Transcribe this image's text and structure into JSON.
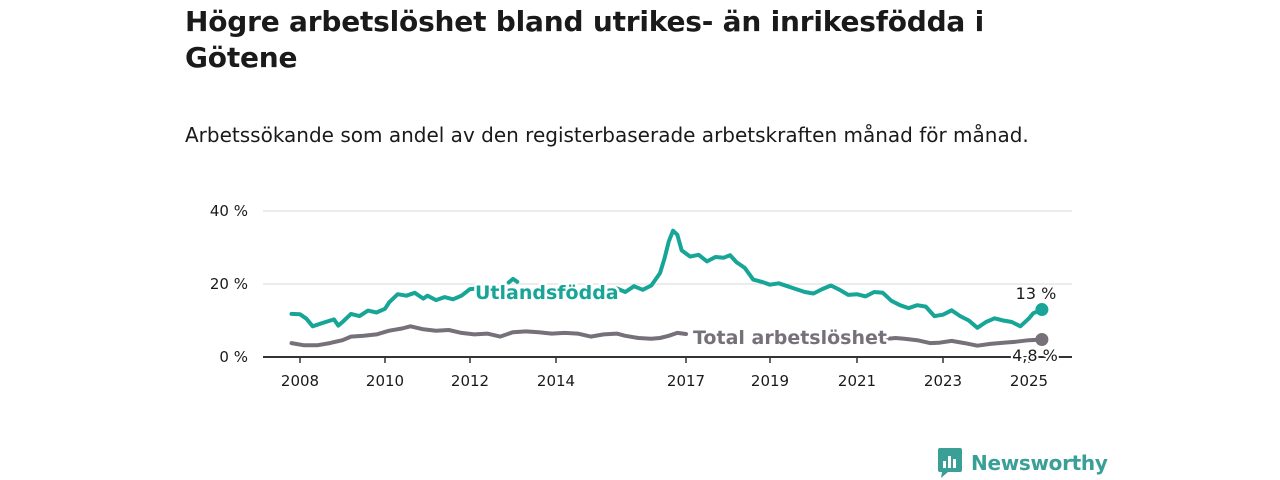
{
  "header": {
    "title": "Högre arbetslöshet bland utrikes- än inrikesfödda i Götene",
    "subtitle": "Arbetssökande som andel av den registerbaserade arbetskraften månad för månad."
  },
  "brand": {
    "name": "Newsworthy",
    "icon": "newsworthy-logo-icon",
    "color": "#3a9f97"
  },
  "chart_data": {
    "type": "line",
    "ylim": [
      0,
      40
    ],
    "y_ticks": [
      0,
      20,
      40
    ],
    "y_tick_labels": [
      "0 %",
      "20 %",
      "40 %"
    ],
    "xlim": [
      2007.8,
      2025.3
    ],
    "x_ticks": [
      2008,
      2010,
      2012,
      2014,
      2017,
      2019,
      2021,
      2023,
      2025
    ],
    "x_tick_labels": [
      "2008",
      "2010",
      "2012",
      "2014",
      "2017",
      "2019",
      "2021",
      "2023",
      "2025"
    ],
    "grid": true,
    "legend": "inline labels",
    "series": [
      {
        "name": "Utlandsfödda",
        "color": "#17a597",
        "end_label": "13 %",
        "points": [
          [
            2007.8,
            11.8
          ],
          [
            2008.0,
            11.7
          ],
          [
            2008.15,
            10.5
          ],
          [
            2008.3,
            8.4
          ],
          [
            2008.5,
            9.2
          ],
          [
            2008.8,
            10.3
          ],
          [
            2008.9,
            8.6
          ],
          [
            2009.0,
            9.6
          ],
          [
            2009.2,
            11.8
          ],
          [
            2009.4,
            11.2
          ],
          [
            2009.6,
            12.7
          ],
          [
            2009.8,
            12.2
          ],
          [
            2010.0,
            13.2
          ],
          [
            2010.1,
            15.0
          ],
          [
            2010.3,
            17.2
          ],
          [
            2010.5,
            16.8
          ],
          [
            2010.7,
            17.6
          ],
          [
            2010.9,
            16.0
          ],
          [
            2011.0,
            16.8
          ],
          [
            2011.2,
            15.6
          ],
          [
            2011.4,
            16.4
          ],
          [
            2011.6,
            15.8
          ],
          [
            2011.8,
            16.8
          ],
          [
            2012.0,
            18.6
          ],
          [
            2012.2,
            18.8
          ]
        ],
        "points_2": [
          [
            2012.9,
            20.4
          ],
          [
            2013.0,
            21.4
          ],
          [
            2013.1,
            20.6
          ]
        ],
        "points_3": [
          [
            2015.2,
            17.2
          ],
          [
            2015.4,
            18.8
          ],
          [
            2015.6,
            17.8
          ],
          [
            2015.8,
            19.4
          ],
          [
            2016.0,
            18.4
          ],
          [
            2016.2,
            19.6
          ],
          [
            2016.4,
            23.0
          ],
          [
            2016.5,
            26.8
          ],
          [
            2016.6,
            31.6
          ],
          [
            2016.7,
            34.6
          ],
          [
            2016.8,
            33.5
          ],
          [
            2016.9,
            29.2
          ],
          [
            2017.1,
            27.5
          ],
          [
            2017.3,
            28.0
          ],
          [
            2017.5,
            26.2
          ],
          [
            2017.7,
            27.4
          ],
          [
            2017.9,
            27.2
          ],
          [
            2018.05,
            27.9
          ],
          [
            2018.2,
            26.0
          ],
          [
            2018.4,
            24.4
          ],
          [
            2018.6,
            21.2
          ],
          [
            2018.8,
            20.6
          ],
          [
            2019.0,
            19.8
          ],
          [
            2019.2,
            20.2
          ],
          [
            2019.4,
            19.4
          ],
          [
            2019.6,
            18.6
          ],
          [
            2019.8,
            17.8
          ],
          [
            2020.0,
            17.4
          ],
          [
            2020.2,
            18.6
          ],
          [
            2020.4,
            19.6
          ],
          [
            2020.6,
            18.4
          ],
          [
            2020.8,
            17.0
          ],
          [
            2021.0,
            17.2
          ],
          [
            2021.2,
            16.6
          ],
          [
            2021.4,
            17.8
          ],
          [
            2021.6,
            17.6
          ],
          [
            2021.8,
            15.4
          ],
          [
            2022.0,
            14.2
          ],
          [
            2022.2,
            13.4
          ],
          [
            2022.4,
            14.2
          ],
          [
            2022.6,
            13.8
          ],
          [
            2022.8,
            11.2
          ],
          [
            2023.0,
            11.6
          ],
          [
            2023.2,
            12.8
          ],
          [
            2023.4,
            11.2
          ],
          [
            2023.6,
            10.0
          ],
          [
            2023.8,
            8.0
          ],
          [
            2024.0,
            9.6
          ],
          [
            2024.2,
            10.6
          ],
          [
            2024.4,
            10.0
          ],
          [
            2024.6,
            9.6
          ],
          [
            2024.8,
            8.4
          ],
          [
            2025.0,
            10.6
          ],
          [
            2025.1,
            12.0
          ],
          [
            2025.3,
            13.0
          ]
        ]
      },
      {
        "name": "Total arbetslöshet",
        "color": "#757079",
        "end_label": "4,8 %",
        "points": [
          [
            2007.8,
            3.8
          ],
          [
            2008.1,
            3.2
          ],
          [
            2008.4,
            3.2
          ],
          [
            2008.7,
            3.8
          ],
          [
            2009.0,
            4.6
          ],
          [
            2009.2,
            5.6
          ],
          [
            2009.5,
            5.8
          ],
          [
            2009.8,
            6.2
          ],
          [
            2010.1,
            7.2
          ],
          [
            2010.4,
            7.8
          ],
          [
            2010.6,
            8.4
          ],
          [
            2010.9,
            7.6
          ],
          [
            2011.2,
            7.2
          ],
          [
            2011.5,
            7.4
          ],
          [
            2011.8,
            6.6
          ],
          [
            2012.1,
            6.2
          ],
          [
            2012.4,
            6.4
          ],
          [
            2012.7,
            5.6
          ],
          [
            2013.0,
            6.8
          ],
          [
            2013.3,
            7.0
          ],
          [
            2013.6,
            6.8
          ],
          [
            2013.9,
            6.4
          ],
          [
            2014.2,
            6.6
          ],
          [
            2014.5,
            6.4
          ],
          [
            2014.8,
            5.6
          ],
          [
            2015.1,
            6.2
          ],
          [
            2015.4,
            6.4
          ],
          [
            2015.6,
            5.8
          ],
          [
            2015.9,
            5.2
          ],
          [
            2016.2,
            5.0
          ],
          [
            2016.4,
            5.2
          ],
          [
            2016.6,
            5.8
          ],
          [
            2016.8,
            6.6
          ],
          [
            2017.0,
            6.3
          ]
        ],
        "points_2": [
          [
            2021.7,
            5.0
          ],
          [
            2021.9,
            5.2
          ],
          [
            2022.1,
            5.0
          ],
          [
            2022.4,
            4.6
          ],
          [
            2022.7,
            3.8
          ],
          [
            2022.9,
            3.9
          ],
          [
            2023.2,
            4.4
          ],
          [
            2023.5,
            3.8
          ],
          [
            2023.8,
            3.1
          ],
          [
            2024.1,
            3.6
          ],
          [
            2024.4,
            3.9
          ],
          [
            2024.7,
            4.2
          ],
          [
            2025.0,
            4.6
          ],
          [
            2025.3,
            4.8
          ]
        ]
      }
    ]
  }
}
